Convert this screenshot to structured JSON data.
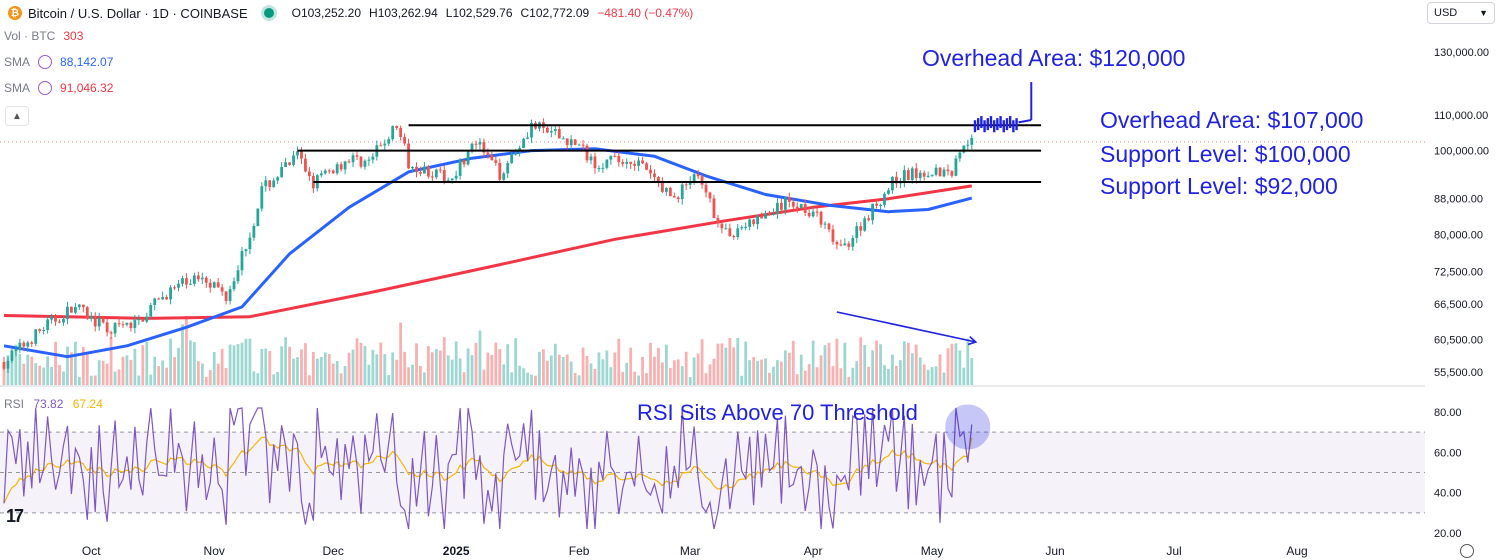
{
  "header": {
    "symbol": "Bitcoin / U.S. Dollar · 1D · COINBASE",
    "open": "O103,252.20",
    "high": "H103,262.94",
    "low": "L102,529.76",
    "close": "C102,772.09",
    "change": "−481.40 (−0.47%)",
    "currency_button": "USD"
  },
  "legend": {
    "vol_label": "Vol · BTC",
    "vol_value": "303",
    "sma1_label": "SMA",
    "sma1_value": "88,142.07",
    "sma2_label": "SMA",
    "sma2_value": "91,046.32",
    "rsi_label": "RSI",
    "rsi_value": "73.82",
    "rsi_ma_value": "67.24"
  },
  "annotations": {
    "overhead_120k": "Overhead Area: $120,000",
    "overhead_107k": "Overhead Area: $107,000",
    "support_100k": "Support Level: $100,000",
    "support_92k": "Support Level: $92,000",
    "rsi_note": "RSI Sits Above 70 Threshold"
  },
  "colors": {
    "up": "#26a69a",
    "down": "#ef5350",
    "sma_short": "#2962ff",
    "sma_long": "#f23645",
    "rsi_line": "#7e57c2",
    "rsi_ma": "#f5b700",
    "annotation": "#1f22e0"
  },
  "chart_data": {
    "type": "candlestick",
    "price_axis": {
      "scale": "log",
      "ticks": [
        {
          "value": 130000,
          "label": "130,000.00"
        },
        {
          "value": 110000,
          "label": "110,000.00"
        },
        {
          "value": 100000,
          "label": "100,000.00"
        },
        {
          "value": 88000,
          "label": "88,000.00"
        },
        {
          "value": 80000,
          "label": "80,000.00"
        },
        {
          "value": 72500,
          "label": "72,500.00"
        },
        {
          "value": 66500,
          "label": "66,500.00"
        },
        {
          "value": 60500,
          "label": "60,500.00"
        },
        {
          "value": 55500,
          "label": "55,500.00"
        }
      ]
    },
    "rsi_axis": {
      "ticks": [
        {
          "value": 80,
          "label": "80.00"
        },
        {
          "value": 60,
          "label": "60.00"
        },
        {
          "value": 40,
          "label": "40.00"
        },
        {
          "value": 20,
          "label": "20.00"
        }
      ],
      "upper_band": 70,
      "middle_band": 50,
      "lower_band": 30
    },
    "x_axis": {
      "start": "2024-09-09",
      "end": "2025-08-31",
      "ticks": [
        {
          "date": "2024-10-01",
          "label": "Oct"
        },
        {
          "date": "2024-11-01",
          "label": "Nov"
        },
        {
          "date": "2024-12-01",
          "label": "Dec"
        },
        {
          "date": "2025-01-01",
          "label": "2025"
        },
        {
          "date": "2025-02-01",
          "label": "Feb"
        },
        {
          "date": "2025-03-01",
          "label": "Mar"
        },
        {
          "date": "2025-04-01",
          "label": "Apr"
        },
        {
          "date": "2025-05-01",
          "label": "May"
        },
        {
          "date": "2025-06-01",
          "label": "Jun"
        },
        {
          "date": "2025-07-01",
          "label": "Jul"
        },
        {
          "date": "2025-08-01",
          "label": "Aug"
        }
      ]
    },
    "closes": [
      {
        "date": "2024-09-09",
        "close": 57000
      },
      {
        "date": "2024-09-20",
        "close": 63000
      },
      {
        "date": "2024-09-27",
        "close": 66000
      },
      {
        "date": "2024-10-05",
        "close": 62000
      },
      {
        "date": "2024-10-12",
        "close": 63000
      },
      {
        "date": "2024-10-20",
        "close": 68500
      },
      {
        "date": "2024-10-29",
        "close": 72000
      },
      {
        "date": "2024-11-04",
        "close": 68000
      },
      {
        "date": "2024-11-10",
        "close": 80000
      },
      {
        "date": "2024-11-13",
        "close": 90000
      },
      {
        "date": "2024-11-22",
        "close": 98500
      },
      {
        "date": "2024-11-26",
        "close": 92000
      },
      {
        "date": "2024-12-05",
        "close": 98000
      },
      {
        "date": "2024-12-10",
        "close": 97000
      },
      {
        "date": "2024-12-17",
        "close": 107000
      },
      {
        "date": "2024-12-20",
        "close": 97000
      },
      {
        "date": "2024-12-30",
        "close": 92500
      },
      {
        "date": "2025-01-06",
        "close": 102000
      },
      {
        "date": "2025-01-12",
        "close": 94000
      },
      {
        "date": "2025-01-20",
        "close": 107000
      },
      {
        "date": "2025-01-31",
        "close": 102000
      },
      {
        "date": "2025-02-05",
        "close": 97000
      },
      {
        "date": "2025-02-15",
        "close": 97500
      },
      {
        "date": "2025-02-25",
        "close": 88000
      },
      {
        "date": "2025-03-02",
        "close": 94000
      },
      {
        "date": "2025-03-10",
        "close": 80000
      },
      {
        "date": "2025-03-20",
        "close": 84000
      },
      {
        "date": "2025-03-26",
        "close": 87500
      },
      {
        "date": "2025-04-01",
        "close": 85000
      },
      {
        "date": "2025-04-08",
        "close": 76500
      },
      {
        "date": "2025-04-15",
        "close": 84500
      },
      {
        "date": "2025-04-22",
        "close": 93000
      },
      {
        "date": "2025-04-30",
        "close": 95000
      },
      {
        "date": "2025-05-06",
        "close": 94500
      },
      {
        "date": "2025-05-09",
        "close": 103000
      },
      {
        "date": "2025-05-11",
        "close": 102772
      }
    ],
    "sma_short": [
      {
        "date": "2024-09-09",
        "value": 59500
      },
      {
        "date": "2024-09-25",
        "value": 57800
      },
      {
        "date": "2024-10-10",
        "value": 59500
      },
      {
        "date": "2024-10-25",
        "value": 62500
      },
      {
        "date": "2024-11-08",
        "value": 66000
      },
      {
        "date": "2024-11-20",
        "value": 76000
      },
      {
        "date": "2024-12-05",
        "value": 86000
      },
      {
        "date": "2024-12-20",
        "value": 94500
      },
      {
        "date": "2025-01-05",
        "value": 98000
      },
      {
        "date": "2025-01-20",
        "value": 100000
      },
      {
        "date": "2025-02-05",
        "value": 100500
      },
      {
        "date": "2025-02-20",
        "value": 98500
      },
      {
        "date": "2025-03-05",
        "value": 93500
      },
      {
        "date": "2025-03-20",
        "value": 89000
      },
      {
        "date": "2025-04-05",
        "value": 86500
      },
      {
        "date": "2025-04-20",
        "value": 85000
      },
      {
        "date": "2025-04-30",
        "value": 85500
      },
      {
        "date": "2025-05-11",
        "value": 88142
      }
    ],
    "sma_long": [
      {
        "date": "2024-09-09",
        "value": 64500
      },
      {
        "date": "2024-10-15",
        "value": 64000
      },
      {
        "date": "2024-11-10",
        "value": 64300
      },
      {
        "date": "2024-12-10",
        "value": 68500
      },
      {
        "date": "2025-01-10",
        "value": 73500
      },
      {
        "date": "2025-02-10",
        "value": 79000
      },
      {
        "date": "2025-03-10",
        "value": 83000
      },
      {
        "date": "2025-04-01",
        "value": 86000
      },
      {
        "date": "2025-04-20",
        "value": 88000
      },
      {
        "date": "2025-05-11",
        "value": 91046
      }
    ],
    "horizontal_levels": [
      {
        "value": 107000,
        "from": "2024-12-20",
        "to": "2025-05-31"
      },
      {
        "value": 100000,
        "from": "2024-11-22",
        "to": "2025-05-31"
      },
      {
        "value": 92000,
        "from": "2024-11-26",
        "to": "2025-05-31"
      }
    ],
    "projection_target": {
      "value": 120000,
      "date": "2025-05-26"
    },
    "volume_trend": {
      "from": "2025-04-07",
      "to": "2025-05-11",
      "direction": "down"
    },
    "rsi_latest": 73.82,
    "rsi_ma_latest": 67.24
  }
}
